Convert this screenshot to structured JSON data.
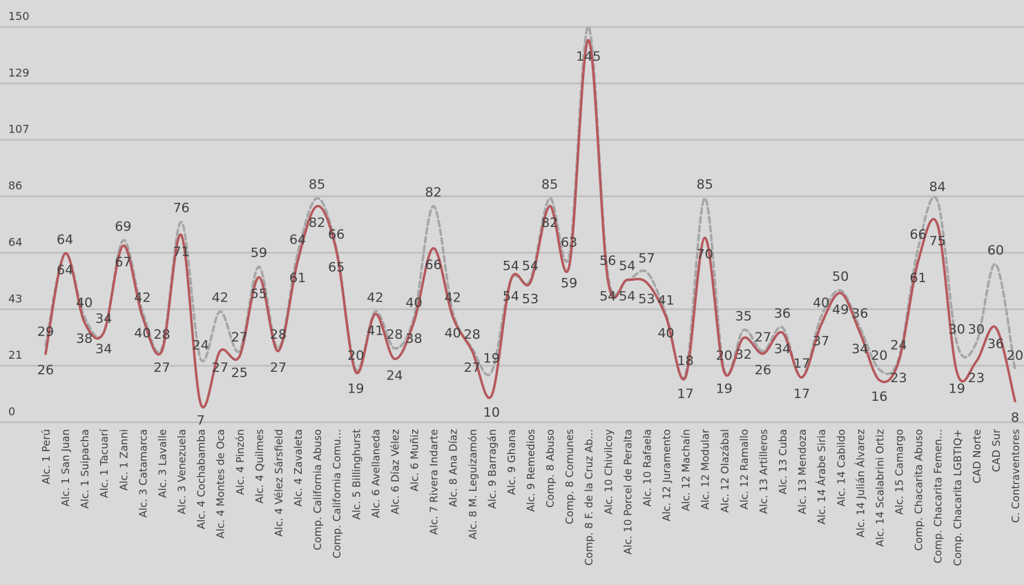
{
  "chart_data": {
    "type": "line",
    "title": "",
    "xlabel": "",
    "ylabel": "",
    "ylim": [
      0,
      150
    ],
    "yticks": [
      "0",
      "21",
      "43",
      "64",
      "86",
      "107",
      "129",
      "150"
    ],
    "grid": true,
    "categories": [
      "Alc. 1 Perú",
      "Alc. 1 San Juan",
      "Alc. 1 Suipacha",
      "Alc. 1 Tacuarí",
      "Alc. 1 Zanni",
      "Alc. 3 Catamarca",
      "Alc. 3 Lavalle",
      "Alc. 3 Venezuela",
      "Alc. 4 Cochabamba",
      "Alc. 4 Montes de Oca",
      "Alc. 4 Pinzón",
      "Alc. 4 Quilmes",
      "Alc. 4 Vélez Sársfield",
      "Alc. 4 Zavaleta",
      "Comp. California Abuso",
      "Comp. California Comu...",
      "Alc. 5 Billinghurst",
      "Alc. 6 Avellaneda",
      "Alc. 6 Díaz Vélez",
      "Alc. 6 Muñiz",
      "Alc. 7 Rivera Indarte",
      "Alc. 8 Ana Díaz",
      "Alc. 8 M. Leguizamón",
      "Alc. 9 Barragán",
      "Alc. 9 Ghana",
      "Alc. 9 Remedios",
      "Comp. 8 Abuso",
      "Comp. 8 Comunes",
      "Comp. 8 F. de la Cruz Ab...",
      "Alc. 10 Chivilcoy",
      "Alc. 10 Porcel de Peralta",
      "Alc. 10 Rafaela",
      "Alc. 12 Juramento",
      "Alc. 12 Machaín",
      "Alc. 12 Modular",
      "Alc. 12 Olazábal",
      "Alc. 12 Ramallo",
      "Alc. 13 Artilleros",
      "Alc. 13 Cuba",
      "Alc. 13 Mendoza",
      "Alc. 14 Árabe Siria",
      "Alc. 14 Cabildo",
      "Alc. 14 Julián Álvarez",
      "Alc. 14 Scalabrini Ortiz",
      "Alc. 15 Camargo",
      "Comp. Chacarita Abuso",
      "Comp. Chacarita Femen...",
      "Comp. Chacarita LGBTIQ+",
      "CAD Norte",
      "CAD Sur",
      "C. Contraventores"
    ],
    "series": [
      {
        "style": "dashed",
        "color": "#a6a6a6",
        "values": [
          29,
          64,
          40,
          34,
          69,
          42,
          28,
          76,
          24,
          42,
          27,
          59,
          28,
          64,
          85,
          66,
          20,
          42,
          28,
          40,
          82,
          42,
          28,
          19,
          54,
          54,
          85,
          63,
          150,
          56,
          54,
          57,
          41,
          18,
          85,
          20,
          35,
          27,
          36,
          17,
          40,
          50,
          36,
          20,
          24,
          66,
          84,
          30,
          30,
          60,
          20
        ],
        "labels": [
          "29",
          "64",
          "40",
          "34",
          "69",
          "42",
          "28",
          "76",
          "24",
          "42",
          "27",
          "59",
          "28",
          "64",
          "85",
          "66",
          "20",
          "42",
          "28",
          "40",
          "82",
          "42",
          "28",
          "19",
          "54",
          "54",
          "85",
          "63",
          "",
          "56",
          "54",
          "57",
          "41",
          "18",
          "85",
          "20",
          "35",
          "27",
          "36",
          "17",
          "40",
          "50",
          "36",
          "20",
          "24",
          "66",
          "84",
          "30",
          "30",
          "60",
          "20"
        ]
      },
      {
        "style": "solid",
        "color": "#b5585c",
        "values": [
          26,
          64,
          38,
          34,
          67,
          40,
          27,
          71,
          7,
          27,
          25,
          55,
          27,
          61,
          82,
          65,
          19,
          41,
          24,
          38,
          66,
          40,
          27,
          10,
          54,
          53,
          82,
          59,
          145,
          54,
          54,
          53,
          40,
          17,
          70,
          19,
          32,
          26,
          34,
          17,
          37,
          49,
          34,
          16,
          23,
          61,
          75,
          19,
          23,
          36,
          8
        ],
        "labels": [
          "26",
          "64",
          "38",
          "34",
          "67",
          "40",
          "27",
          "71",
          "7",
          "27",
          "25",
          "55",
          "27",
          "61",
          "82",
          "65",
          "19",
          "41",
          "24",
          "38",
          "66",
          "40",
          "27",
          "10",
          "54",
          "53",
          "82",
          "59",
          "145",
          "54",
          "54",
          "53",
          "40",
          "17",
          "70",
          "19",
          "32",
          "26",
          "34",
          "17",
          "37",
          "49",
          "34",
          "16",
          "23",
          "61",
          "75",
          "19",
          "23",
          "36",
          "8"
        ]
      }
    ]
  }
}
